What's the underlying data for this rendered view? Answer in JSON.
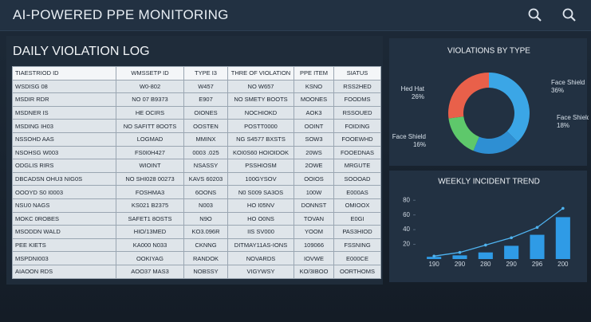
{
  "header": {
    "title": "AI-POWERED PPE MONITORING"
  },
  "log": {
    "title": "DAILY VIOLATION LOG",
    "table": {
      "columns": [
        "TIAESTRIOD ID",
        "WMSSETP ID",
        "TYPE I3",
        "THRE OF VIOLATION",
        "PPE ITEM",
        "SIATUS"
      ],
      "rows": [
        [
          "WSDISG 08",
          "W0-802",
          "W457",
          "NO W657",
          "KSNO",
          "RSS2HED"
        ],
        [
          "MSDIR RDR",
          "NO 07 B9373",
          "E907",
          "NO SMETY BOOTS",
          "MOONES",
          "FOODMS"
        ],
        [
          "MSDNER IS",
          "HE OCIRS",
          "OIONES",
          "NOCHIOKD",
          "AOK3",
          "RSSOUED"
        ],
        [
          "MSDING IH03",
          "NO SAFITT 8OOTS",
          "OOSTEN",
          "POSTT0000",
          "OOINT",
          "FOIDING"
        ],
        [
          "NSSOHD AAS",
          "LOGMAD",
          "MMINX",
          "NG S4577 BXSTS",
          "SOW3",
          "FOOEWHD"
        ],
        [
          "NSOHSG W003",
          "FS0I0H427",
          "0003 .025",
          "KOI0S60 HOIOIDOK",
          "20WS",
          "FOOEDNAS"
        ],
        [
          "ODGLIS RIRS",
          "WIOINT",
          "NSASSY",
          "PSSHIOSM",
          "2OWE",
          "MRGUTE"
        ],
        [
          "DBCADSN OHU3 NIG0S",
          "NO SHI028 00273",
          "KAVS 60203",
          "100GYSOV",
          "OOIOS",
          "SOOOAD"
        ],
        [
          "OOOYD S0 I0003",
          "FOSHMA3",
          "6OONS",
          "N0 S009 SA3OS",
          "100W",
          "E000AS"
        ],
        [
          "NSU0 NAGS",
          "KS021 B2375",
          "N003",
          "HO I05NV",
          "DONNST",
          "OMIOOX"
        ],
        [
          "MOKC 0ROBES",
          "SAFET1 8OSTS",
          "N9O",
          "HO O0NS",
          "TOVAN",
          "E0GI"
        ],
        [
          "MSODDN WALD",
          "HIO/13MED",
          "KO3.096R",
          "IIS SV000",
          "YOOM",
          "PAS3HIOD"
        ],
        [
          "PEE KIETS",
          "KA000 N033",
          "CKNNG",
          "DITMAY11AS-IONS",
          "109066",
          "FSSNING"
        ],
        [
          "MSPDNI003",
          "OOKIYAG",
          "RANDOK",
          "NOVARDS",
          "IOVWE",
          "E000CE"
        ],
        [
          "AIAOON RDS",
          "AOO37 MAS3",
          "NOBSSY",
          "VIGYWSY",
          "KO/3IBOO",
          "OORTHOMS"
        ]
      ]
    }
  },
  "chart_data": [
    {
      "type": "pie",
      "title": "VIOLATIONS BY TYPE",
      "categories": [
        "Face Shield",
        "Face Shield",
        "Face Shield",
        "Hed Hat"
      ],
      "values": [
        36,
        18,
        16,
        26
      ],
      "value_labels": [
        "36%",
        "18%",
        "16%",
        "26%"
      ],
      "colors": [
        "#3ba6e6",
        "#2e8fd3",
        "#5ec86b",
        "#e9604a"
      ]
    },
    {
      "type": "bar",
      "title": "WEEKLY INCIDENT TREND",
      "categories": [
        "190",
        "290",
        "280",
        "290",
        "296",
        "200"
      ],
      "ylim": [
        0,
        90
      ],
      "yticks": [
        20,
        40,
        60,
        80
      ],
      "series": [
        {
          "type": "bar",
          "color": "#2f9be6",
          "values": [
            3,
            5,
            9,
            18,
            33,
            57
          ]
        },
        {
          "type": "line",
          "color": "#4fb3f0",
          "values": [
            4,
            9,
            19,
            29,
            43,
            69
          ]
        }
      ]
    }
  ]
}
